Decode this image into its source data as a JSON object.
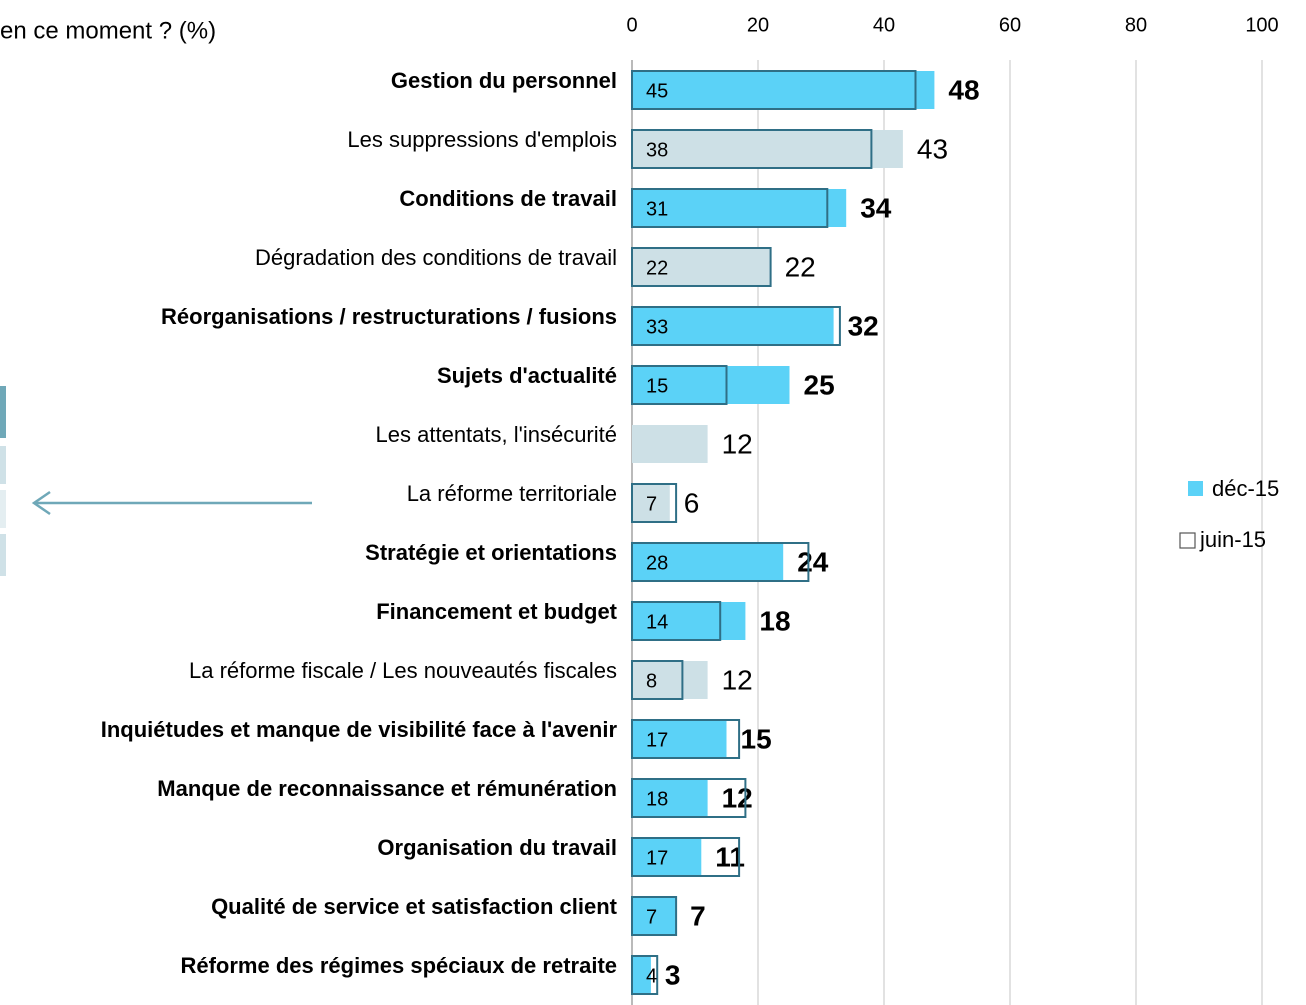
{
  "chart_data": {
    "type": "bar",
    "orientation": "horizontal",
    "title": "en ce moment ? (%)",
    "categories": [
      "Gestion du personnel",
      "Les suppressions d'emplois",
      "Conditions de travail",
      "Dégradation des conditions de travail",
      "Réorganisations / restructurations / fusions",
      "Sujets d'actualité",
      "Les attentats, l'insécurité",
      "La réforme territoriale",
      "Stratégie et orientations",
      "Financement et budget",
      "La réforme fiscale / Les nouveautés fiscales",
      "Inquiétudes et manque de visibilité face à l'avenir",
      "Manque de reconnaissance et rémunération",
      "Organisation du travail",
      "Qualité de service et satisfaction client",
      "Réforme des régimes spéciaux de retraite"
    ],
    "series": [
      {
        "name": "déc-15",
        "color": "#5bd2f7",
        "point_colors": [
          "#5bd2f7",
          "#cde0e6",
          "#5bd2f7",
          "#cde0e6",
          "#5bd2f7",
          "#5bd2f7",
          "#cde0e6",
          "#cde0e6",
          "#5bd2f7",
          "#5bd2f7",
          "#cde0e6",
          "#5bd2f7",
          "#5bd2f7",
          "#5bd2f7",
          "#5bd2f7",
          "#5bd2f7"
        ],
        "values": [
          48,
          43,
          34,
          22,
          32,
          25,
          12,
          6,
          24,
          18,
          12,
          15,
          12,
          11,
          7,
          3
        ]
      },
      {
        "name": "juin-15",
        "color": "#2f6f86",
        "values": [
          45,
          38,
          31,
          22,
          33,
          15,
          null,
          7,
          28,
          14,
          8,
          17,
          18,
          17,
          7,
          4
        ]
      }
    ],
    "xlim": [
      0,
      100
    ],
    "xticks": [
      0,
      20,
      40,
      60,
      80,
      100
    ],
    "grid": true,
    "legend": "right"
  }
}
